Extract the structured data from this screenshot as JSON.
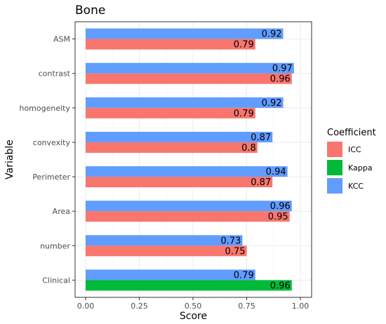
{
  "chart_data": {
    "type": "bar",
    "orientation": "horizontal",
    "title": "Bone",
    "xlabel": "Score",
    "ylabel": "Variable",
    "xlim": [
      0,
      1
    ],
    "x_ticks": [
      "0.00",
      "0.25",
      "0.50",
      "0.75",
      "1.00"
    ],
    "grid": true,
    "legend_title": "Coefficient",
    "legend_position": "right",
    "legend": [
      {
        "name": "ICC",
        "color": "#F8766D"
      },
      {
        "name": "Kappa",
        "color": "#00BA38"
      },
      {
        "name": "KCC",
        "color": "#619CFF"
      }
    ],
    "categories": [
      "ASM",
      "contrast",
      "homogeneity",
      "convexity",
      "Perimeter",
      "Area",
      "number",
      "Clinical"
    ],
    "bars": [
      {
        "category": "ASM",
        "upper": {
          "coef": "KCC",
          "value": 0.92,
          "label": "0.92"
        },
        "lower": {
          "coef": "ICC",
          "value": 0.79,
          "label": "0.79"
        }
      },
      {
        "category": "contrast",
        "upper": {
          "coef": "KCC",
          "value": 0.97,
          "label": "0.97"
        },
        "lower": {
          "coef": "ICC",
          "value": 0.96,
          "label": "0.96"
        }
      },
      {
        "category": "homogeneity",
        "upper": {
          "coef": "KCC",
          "value": 0.92,
          "label": "0.92"
        },
        "lower": {
          "coef": "ICC",
          "value": 0.79,
          "label": "0.79"
        }
      },
      {
        "category": "convexity",
        "upper": {
          "coef": "KCC",
          "value": 0.87,
          "label": "0.87"
        },
        "lower": {
          "coef": "ICC",
          "value": 0.8,
          "label": "0.8"
        }
      },
      {
        "category": "Perimeter",
        "upper": {
          "coef": "KCC",
          "value": 0.94,
          "label": "0.94"
        },
        "lower": {
          "coef": "ICC",
          "value": 0.87,
          "label": "0.87"
        }
      },
      {
        "category": "Area",
        "upper": {
          "coef": "KCC",
          "value": 0.96,
          "label": "0.96"
        },
        "lower": {
          "coef": "ICC",
          "value": 0.95,
          "label": "0.95"
        }
      },
      {
        "category": "number",
        "upper": {
          "coef": "KCC",
          "value": 0.73,
          "label": "0.73"
        },
        "lower": {
          "coef": "ICC",
          "value": 0.75,
          "label": "0.75"
        }
      },
      {
        "category": "Clinical",
        "upper": {
          "coef": "KCC",
          "value": 0.79,
          "label": "0.79"
        },
        "lower": {
          "coef": "Kappa",
          "value": 0.96,
          "label": "0.96"
        }
      }
    ]
  }
}
